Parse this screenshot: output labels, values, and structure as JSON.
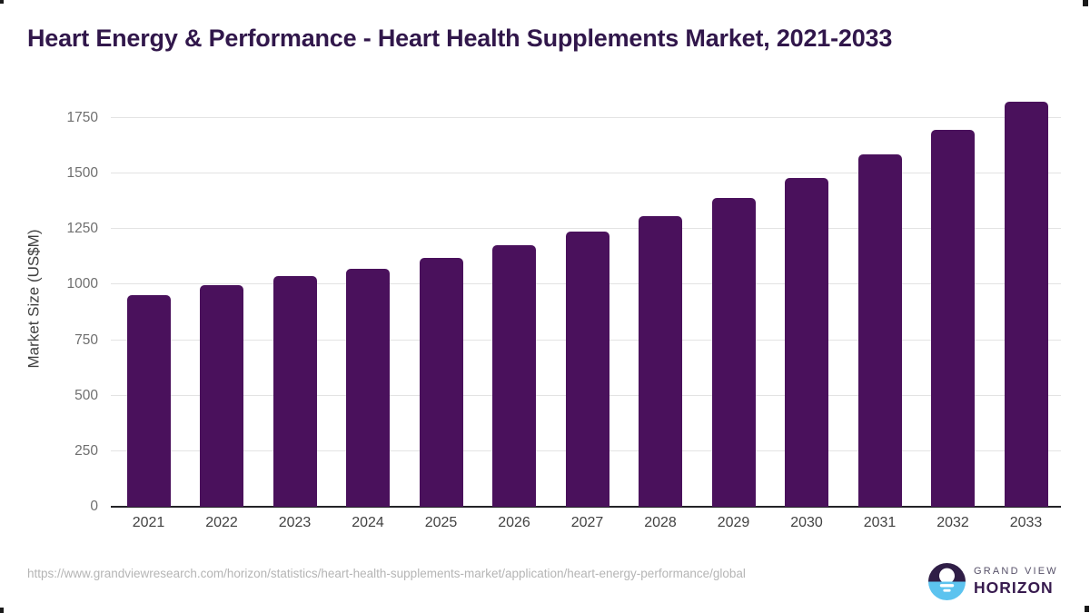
{
  "title": "Heart Energy & Performance - Heart Health Supplements Market, 2021-2033",
  "chart_data": {
    "type": "bar",
    "title": "Heart Energy & Performance - Heart Health Supplements Market, 2021-2033",
    "categories": [
      "2021",
      "2022",
      "2023",
      "2024",
      "2025",
      "2026",
      "2027",
      "2028",
      "2029",
      "2030",
      "2031",
      "2032",
      "2033"
    ],
    "values": [
      952,
      998,
      1040,
      1072,
      1122,
      1178,
      1240,
      1310,
      1392,
      1480,
      1585,
      1695,
      1822
    ],
    "xlabel": "",
    "ylabel": "Market Size (US$M)",
    "ylim": [
      0,
      1870
    ],
    "yticks": [
      0,
      250,
      500,
      750,
      1000,
      1250,
      1500,
      1750
    ],
    "grid": true,
    "legend_position": "none",
    "bar_color": "#4A115C"
  },
  "colors": {
    "bar": "#4A115C",
    "title_text": "#31174B",
    "gridline": "#e3e3e3",
    "axis_line": "#232327",
    "tick_text": "#6f6f6f",
    "url_text": "#b5b5b5",
    "logo_dark": "#301E47",
    "logo_blue": "#5CC3EF"
  },
  "footer": {
    "source_url": "https://www.grandviewresearch.com/horizon/statistics/heart-health-supplements-market/application/heart-energy-performance/global",
    "logo": {
      "brand_top": "GRAND VIEW",
      "brand_bottom": "HORIZON"
    }
  }
}
